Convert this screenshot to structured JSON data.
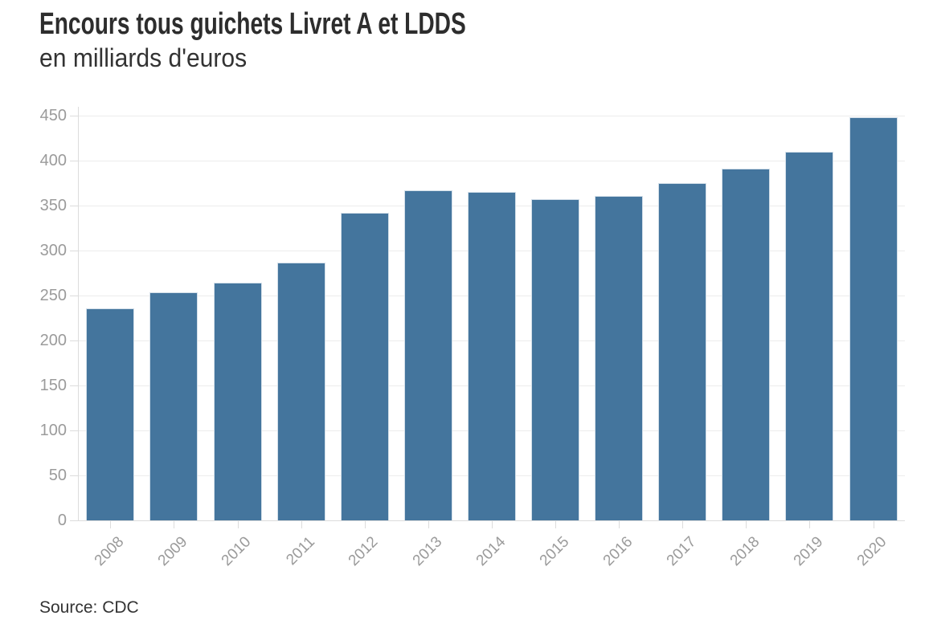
{
  "chart_data": {
    "type": "bar",
    "title": "Encours tous guichets Livret A et LDDS",
    "subtitle": "en milliards d'euros",
    "source": "Source: CDC",
    "categories": [
      "2008",
      "2009",
      "2010",
      "2011",
      "2012",
      "2013",
      "2014",
      "2015",
      "2016",
      "2017",
      "2018",
      "2019",
      "2020"
    ],
    "values": [
      236,
      254,
      264,
      287,
      342,
      367,
      365,
      357,
      361,
      375,
      391,
      410,
      448
    ],
    "xlabel": "",
    "ylabel": "",
    "ylim": [
      0,
      450
    ],
    "ytick_step": 50,
    "yticks": [
      0,
      50,
      100,
      150,
      200,
      250,
      300,
      350,
      400,
      450
    ],
    "grid": true,
    "legend": "none",
    "colors": {
      "bar_fill": "#44759d",
      "bar_border": "#d3dfe9",
      "gridline": "#ececec",
      "axis_line": "#dcdcdc",
      "tick_label": "#9b9b9b",
      "title_text": "#2d2d2d",
      "body_text": "#333333"
    }
  }
}
